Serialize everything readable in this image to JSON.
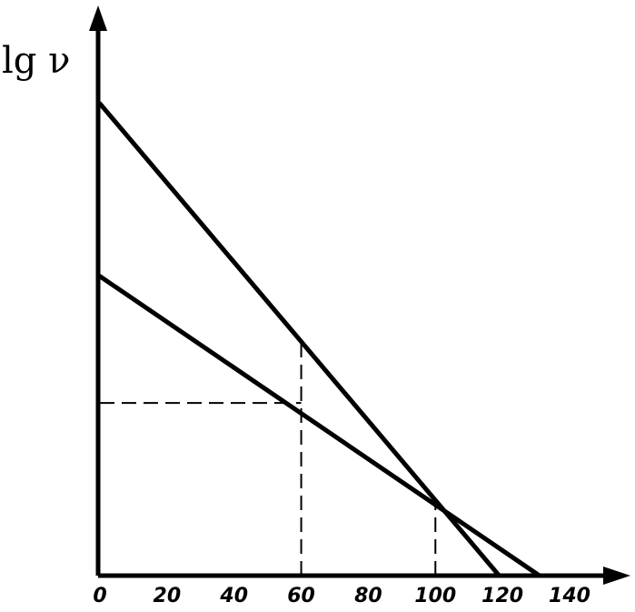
{
  "chart_data": {
    "type": "line",
    "ylabel": "lg ν",
    "xlabel": "",
    "xlim": [
      0,
      140
    ],
    "ylim": [
      0,
      1
    ],
    "x_ticks": [
      0,
      20,
      40,
      60,
      80,
      100,
      120,
      140
    ],
    "x_tick_labels": [
      "0",
      "20",
      "40",
      "60",
      "80",
      "100",
      "120",
      "140"
    ],
    "y_ticks_shown": false,
    "grid": false,
    "series": [
      {
        "x": [
          0,
          119
        ],
        "y": [
          0.82,
          0
        ]
      },
      {
        "x": [
          0,
          131
        ],
        "y": [
          0.52,
          0
        ]
      }
    ],
    "guides": [
      {
        "kind": "vertical",
        "x": 60,
        "y_from": 0,
        "y_to": 0.41
      },
      {
        "kind": "vertical",
        "x": 100,
        "y_from": 0,
        "y_to": 0.13
      },
      {
        "kind": "horizontal",
        "y": 0.3,
        "x_from": 0,
        "x_to": 60
      }
    ]
  }
}
